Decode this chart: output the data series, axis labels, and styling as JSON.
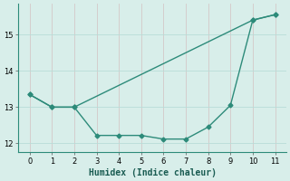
{
  "line1_x": [
    0,
    1,
    2,
    10,
    11
  ],
  "line1_y": [
    13.35,
    13.0,
    13.0,
    15.4,
    15.55
  ],
  "line2_x": [
    0,
    1,
    2,
    3,
    4,
    5,
    6,
    7,
    8,
    9,
    10,
    11
  ],
  "line2_y": [
    13.35,
    13.0,
    13.0,
    12.22,
    12.22,
    12.22,
    12.12,
    12.12,
    12.45,
    13.05,
    15.4,
    15.55
  ],
  "line_color": "#2d8b7a",
  "bg_color": "#d8eeea",
  "grid_color": "#b8ddd8",
  "xlabel": "Humidex (Indice chaleur)",
  "xlim": [
    -0.5,
    11.5
  ],
  "ylim": [
    11.75,
    15.85
  ],
  "xticks": [
    0,
    1,
    2,
    3,
    4,
    5,
    6,
    7,
    8,
    9,
    10,
    11
  ],
  "yticks": [
    12,
    13,
    14,
    15
  ]
}
